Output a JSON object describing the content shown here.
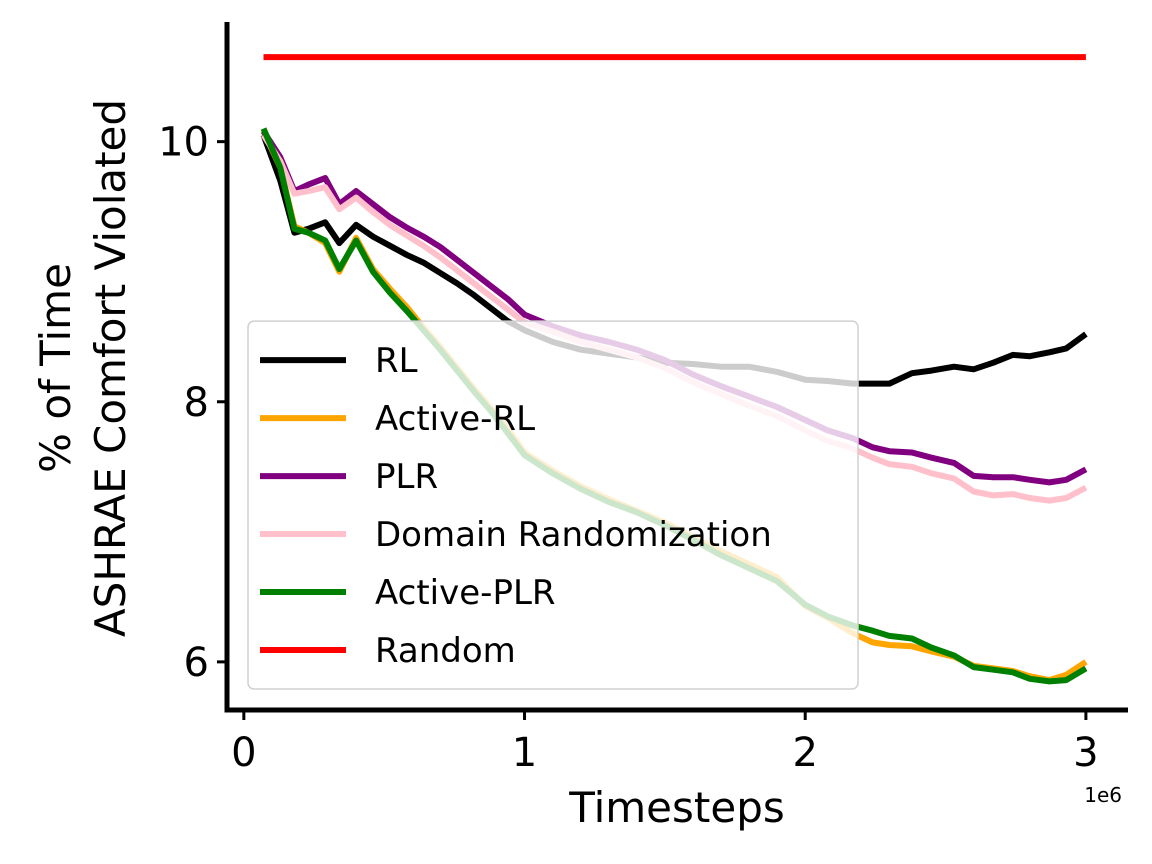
{
  "chart_data": {
    "type": "line",
    "title": "",
    "xlabel": "Timesteps",
    "ylabel": [
      "% of Time",
      "ASHRAE Comfort Violated"
    ],
    "x_multiplier_label": "1e6",
    "xlim": [
      -0.06,
      3.15
    ],
    "ylim": [
      5.63,
      10.92
    ],
    "x_ticks": [
      0,
      1,
      2,
      3
    ],
    "x_tick_labels": [
      "0",
      "1",
      "2",
      "3"
    ],
    "y_ticks": [
      6,
      8,
      10
    ],
    "y_tick_labels": [
      "6",
      "8",
      "10"
    ],
    "grid": false,
    "legend": {
      "placement": "lower-left",
      "bbox_top_value": 8.62
    },
    "x": [
      0.07,
      0.13,
      0.18,
      0.23,
      0.29,
      0.34,
      0.4,
      0.46,
      0.52,
      0.58,
      0.64,
      0.7,
      0.76,
      0.82,
      0.88,
      0.94,
      1.0,
      1.1,
      1.2,
      1.3,
      1.4,
      1.5,
      1.6,
      1.7,
      1.8,
      1.9,
      2.0,
      2.08,
      2.17,
      2.24,
      2.3,
      2.38,
      2.45,
      2.53,
      2.6,
      2.67,
      2.74,
      2.8,
      2.87,
      2.93,
      3.0
    ],
    "series": [
      {
        "name": "RL",
        "color": "#000000",
        "values": [
          10.05,
          9.7,
          9.3,
          9.33,
          9.38,
          9.22,
          9.36,
          9.27,
          9.2,
          9.13,
          9.07,
          8.99,
          8.91,
          8.82,
          8.72,
          8.62,
          8.55,
          8.46,
          8.4,
          8.37,
          8.34,
          8.3,
          8.29,
          8.27,
          8.27,
          8.23,
          8.17,
          8.16,
          8.14,
          8.14,
          8.14,
          8.22,
          8.24,
          8.27,
          8.25,
          8.3,
          8.36,
          8.35,
          8.38,
          8.41,
          8.52
        ]
      },
      {
        "name": "Active-RL",
        "color": "#FFA500",
        "values": [
          10.08,
          9.8,
          9.35,
          9.3,
          9.22,
          9.0,
          9.26,
          9.02,
          8.87,
          8.73,
          8.57,
          8.42,
          8.26,
          8.1,
          7.95,
          7.79,
          7.61,
          7.47,
          7.35,
          7.25,
          7.16,
          7.07,
          6.96,
          6.85,
          6.75,
          6.65,
          6.43,
          6.34,
          6.22,
          6.15,
          6.13,
          6.12,
          6.08,
          6.04,
          5.97,
          5.95,
          5.93,
          5.89,
          5.86,
          5.9,
          6.0
        ]
      },
      {
        "name": "PLR",
        "color": "#800080",
        "values": [
          10.08,
          9.88,
          9.62,
          9.67,
          9.72,
          9.52,
          9.62,
          9.52,
          9.42,
          9.34,
          9.27,
          9.19,
          9.09,
          8.99,
          8.89,
          8.79,
          8.67,
          8.58,
          8.51,
          8.46,
          8.4,
          8.32,
          8.21,
          8.12,
          8.04,
          7.96,
          7.86,
          7.78,
          7.72,
          7.65,
          7.62,
          7.61,
          7.57,
          7.53,
          7.43,
          7.42,
          7.42,
          7.4,
          7.38,
          7.4,
          7.48
        ]
      },
      {
        "name": "Domain Randomization",
        "color": "#FFC0CB",
        "values": [
          10.05,
          9.85,
          9.6,
          9.62,
          9.65,
          9.48,
          9.57,
          9.46,
          9.36,
          9.28,
          9.2,
          9.11,
          9.01,
          8.91,
          8.81,
          8.71,
          8.61,
          8.54,
          8.46,
          8.4,
          8.34,
          8.26,
          8.15,
          8.06,
          7.97,
          7.89,
          7.78,
          7.7,
          7.64,
          7.57,
          7.52,
          7.5,
          7.45,
          7.41,
          7.31,
          7.28,
          7.29,
          7.26,
          7.24,
          7.26,
          7.34
        ]
      },
      {
        "name": "Active-PLR",
        "color": "#008000",
        "values": [
          10.1,
          9.8,
          9.33,
          9.3,
          9.24,
          9.02,
          9.24,
          9.0,
          8.84,
          8.7,
          8.55,
          8.4,
          8.24,
          8.08,
          7.93,
          7.76,
          7.59,
          7.45,
          7.33,
          7.23,
          7.15,
          7.05,
          6.94,
          6.82,
          6.72,
          6.62,
          6.44,
          6.35,
          6.28,
          6.24,
          6.2,
          6.18,
          6.11,
          6.05,
          5.96,
          5.94,
          5.92,
          5.87,
          5.85,
          5.86,
          5.95
        ]
      },
      {
        "name": "Random",
        "color": "#FF0000",
        "values": [
          10.65,
          10.65,
          10.65,
          10.65,
          10.65,
          10.65,
          10.65,
          10.65,
          10.65,
          10.65,
          10.65,
          10.65,
          10.65,
          10.65,
          10.65,
          10.65,
          10.65,
          10.65,
          10.65,
          10.65,
          10.65,
          10.65,
          10.65,
          10.65,
          10.65,
          10.65,
          10.65,
          10.65,
          10.65,
          10.65,
          10.65,
          10.65,
          10.65,
          10.65,
          10.65,
          10.65,
          10.65,
          10.65,
          10.65,
          10.65,
          10.65
        ]
      }
    ]
  }
}
